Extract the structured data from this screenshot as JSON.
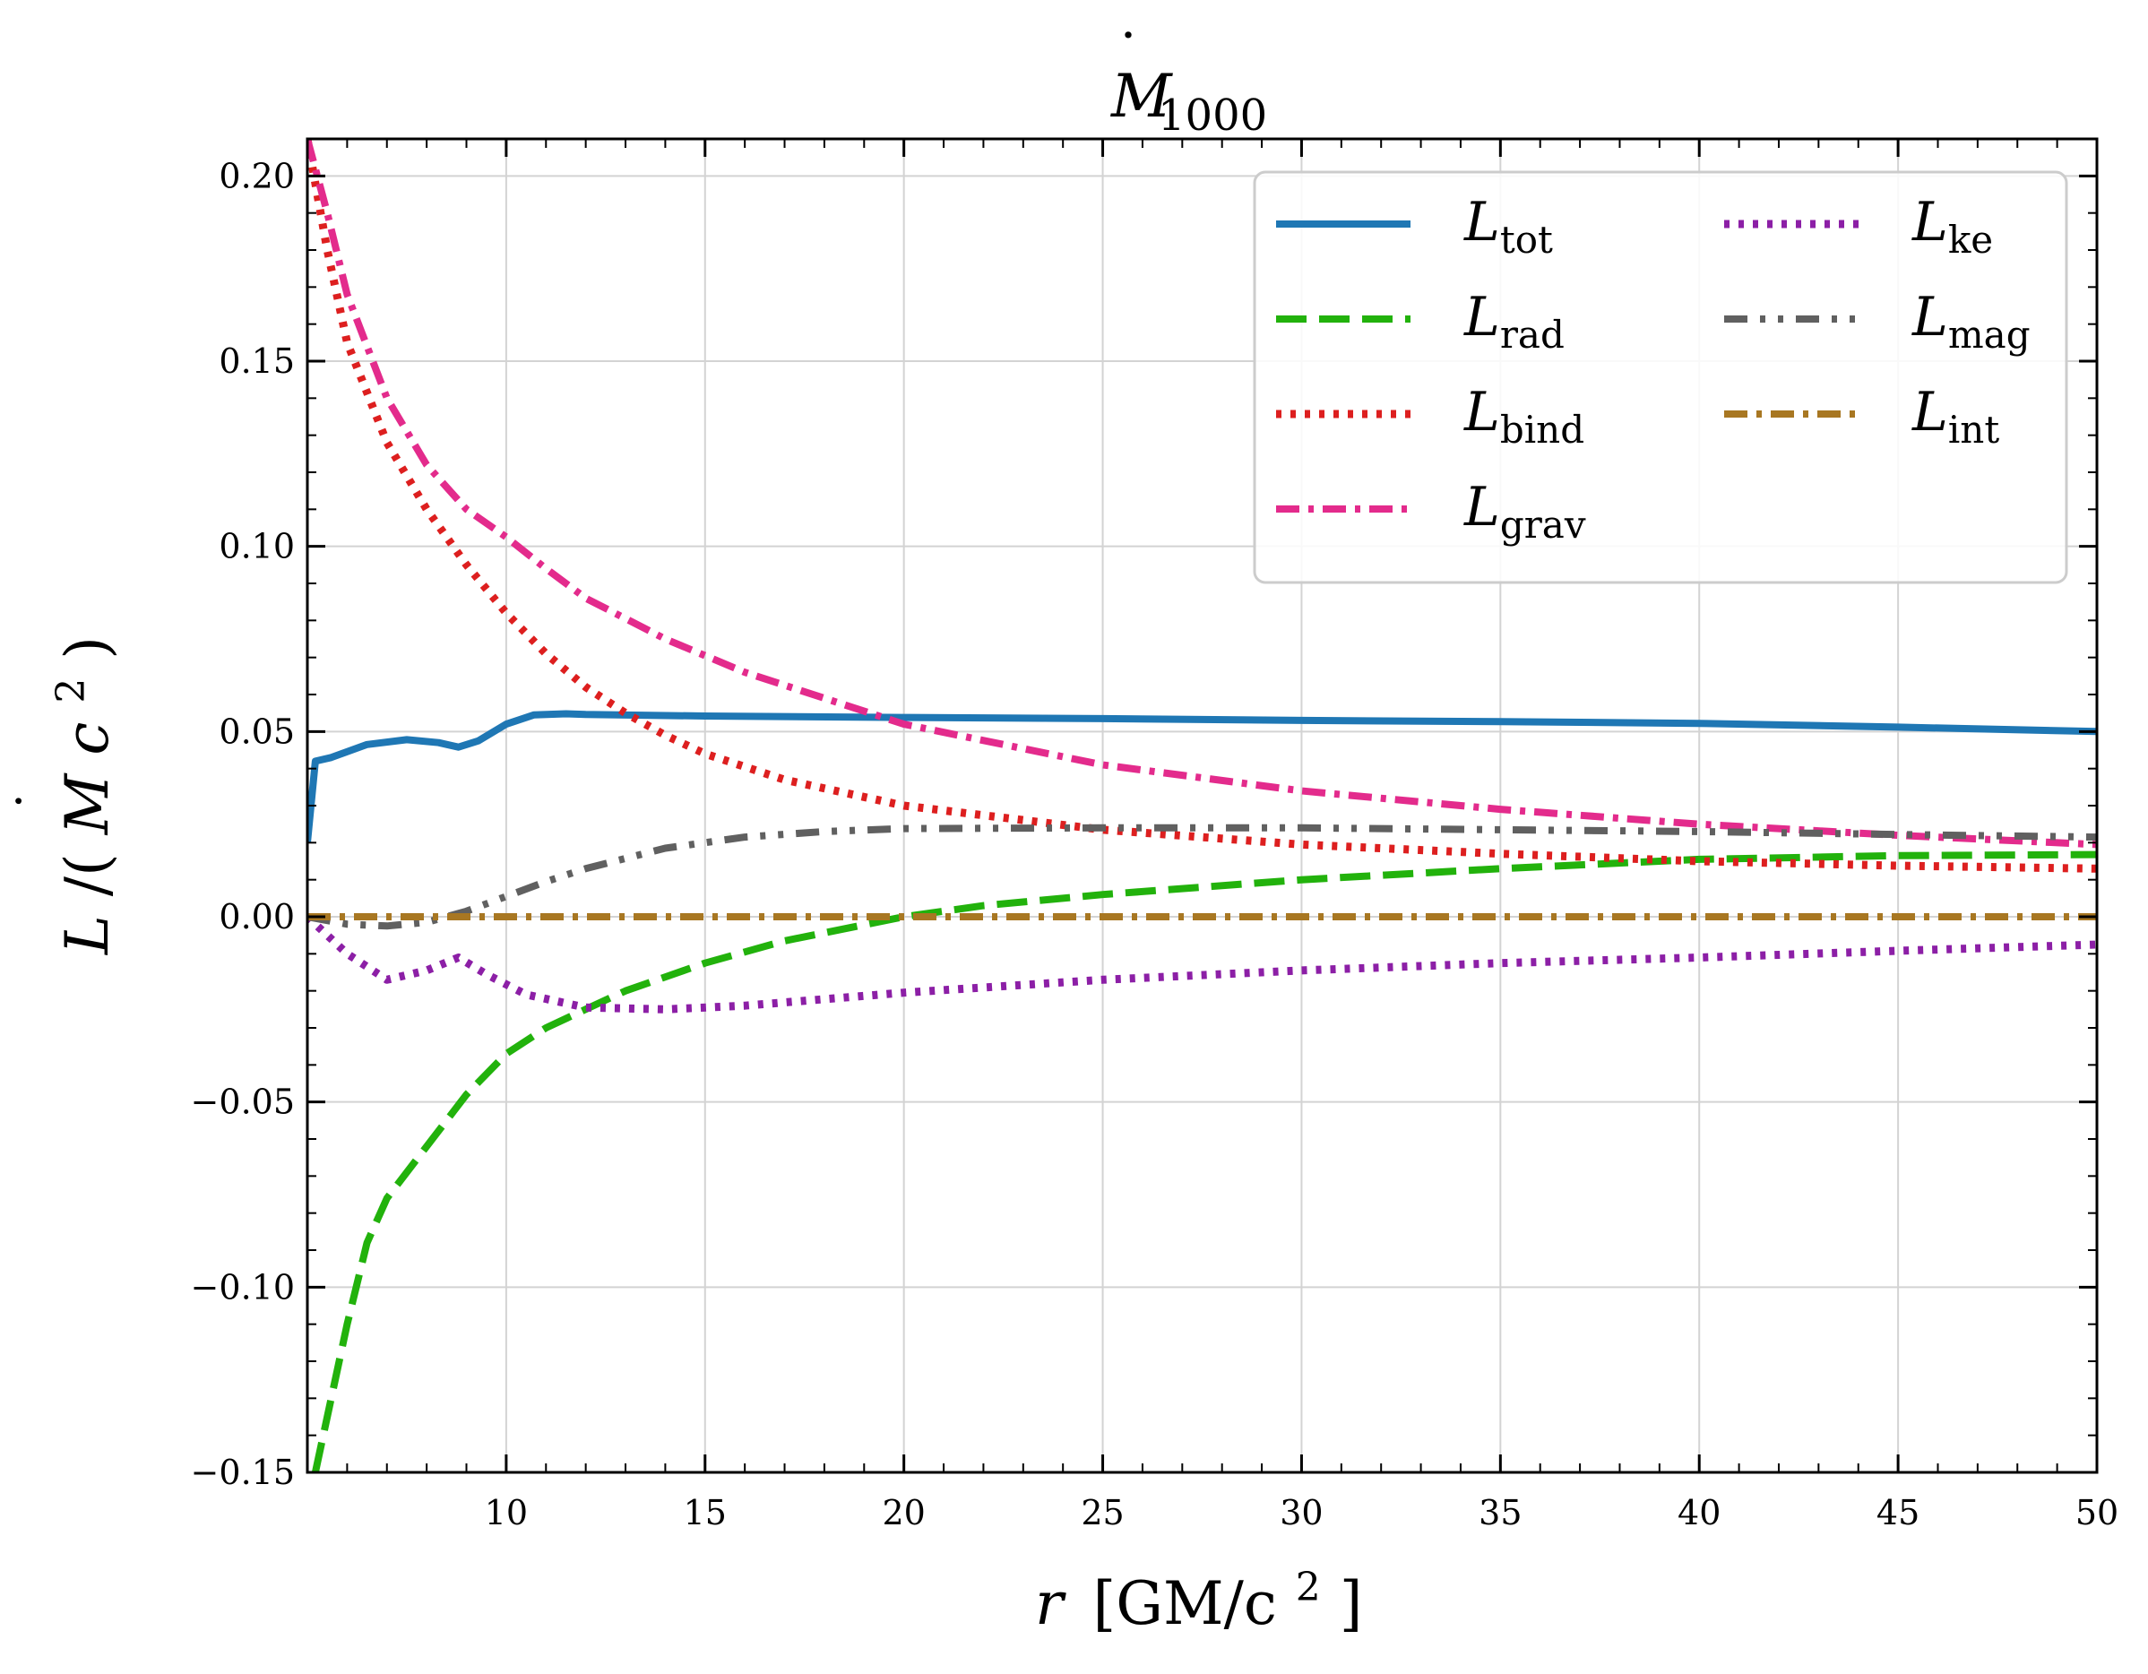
{
  "chart_data": {
    "type": "line",
    "title": {
      "base": "M",
      "dot": "˙",
      "subscript": "1000"
    },
    "xlabel": {
      "var": "r",
      "units": "[GM/c",
      "sup": "2",
      "close": "]"
    },
    "ylabel": {
      "var": "L",
      "slash": "/(",
      "mdot": "M",
      "c": "c",
      "sup": "2",
      "close": ")"
    },
    "xlim": [
      5,
      50
    ],
    "ylim": [
      -0.15,
      0.21
    ],
    "xticks": [
      10,
      15,
      20,
      25,
      30,
      35,
      40,
      45,
      50
    ],
    "xtick_labels": [
      "10",
      "15",
      "20",
      "25",
      "30",
      "35",
      "40",
      "45",
      "50"
    ],
    "yticks": [
      -0.15,
      -0.1,
      -0.05,
      0.0,
      0.05,
      0.1,
      0.15,
      0.2
    ],
    "ytick_labels": [
      "−0.15",
      "−0.10",
      "−0.05",
      "0.00",
      "0.05",
      "0.10",
      "0.15",
      "0.20"
    ],
    "grid": true,
    "legend": {
      "placement": "top-right",
      "columns": 2
    },
    "series": [
      {
        "key": "tot",
        "name": "L",
        "sub": "tot",
        "color": "#1f77b4",
        "style": "solid",
        "x": [
          5,
          5.2,
          5.6,
          6.5,
          7.5,
          8.3,
          8.8,
          9.3,
          10,
          10.7,
          11.5,
          12,
          15,
          20,
          25,
          30,
          35,
          40,
          45,
          50
        ],
        "y": [
          0.02,
          0.042,
          0.043,
          0.0465,
          0.0478,
          0.047,
          0.0458,
          0.0475,
          0.052,
          0.0545,
          0.0548,
          0.0546,
          0.0542,
          0.0538,
          0.0535,
          0.053,
          0.0527,
          0.0522,
          0.0512,
          0.05
        ]
      },
      {
        "key": "rad",
        "name": "L",
        "sub": "rad",
        "color": "#22b20c",
        "style": "dashed",
        "x": [
          5.2,
          5.5,
          6,
          6.5,
          7,
          8,
          9,
          10,
          11,
          12,
          13,
          15,
          17,
          20,
          22,
          25,
          30,
          35,
          40,
          45,
          50
        ],
        "y": [
          -0.15,
          -0.135,
          -0.11,
          -0.088,
          -0.076,
          -0.062,
          -0.048,
          -0.037,
          -0.03,
          -0.025,
          -0.02,
          -0.0125,
          -0.0065,
          0.0,
          0.003,
          0.006,
          0.01,
          0.013,
          0.0155,
          0.0165,
          0.0168
        ]
      },
      {
        "key": "bind",
        "name": "L",
        "sub": "bind",
        "color": "#dd1f1f",
        "style": "dotted",
        "x": [
          5,
          5.5,
          6,
          7,
          8,
          9,
          10,
          11,
          12,
          13,
          14,
          15,
          17,
          20,
          25,
          30,
          35,
          40,
          45,
          50
        ],
        "y": [
          0.21,
          0.18,
          0.155,
          0.128,
          0.11,
          0.095,
          0.082,
          0.071,
          0.062,
          0.055,
          0.049,
          0.044,
          0.037,
          0.03,
          0.0235,
          0.0195,
          0.017,
          0.015,
          0.0138,
          0.013
        ]
      },
      {
        "key": "grav",
        "name": "L",
        "sub": "grav",
        "color": "#e32b8c",
        "style": "dashdot",
        "x": [
          5,
          5.5,
          6,
          7,
          8,
          9,
          10,
          11,
          12,
          14,
          16,
          20,
          25,
          30,
          35,
          40,
          45,
          50
        ],
        "y": [
          0.21,
          0.19,
          0.168,
          0.14,
          0.122,
          0.11,
          0.1025,
          0.094,
          0.086,
          0.075,
          0.066,
          0.052,
          0.041,
          0.034,
          0.029,
          0.025,
          0.022,
          0.0195
        ]
      },
      {
        "key": "ke",
        "name": "L",
        "sub": "ke",
        "color": "#8c1fa6",
        "style": "dotted",
        "x": [
          5,
          6,
          7,
          8,
          8.8,
          9.5,
          10.5,
          12,
          14,
          16,
          20,
          25,
          30,
          35,
          40,
          45,
          50
        ],
        "y": [
          0.0,
          -0.01,
          -0.017,
          -0.0145,
          -0.011,
          -0.0155,
          -0.021,
          -0.0245,
          -0.025,
          -0.024,
          -0.0205,
          -0.017,
          -0.0145,
          -0.0125,
          -0.011,
          -0.0092,
          -0.0075
        ]
      },
      {
        "key": "mag",
        "name": "L",
        "sub": "mag",
        "color": "#606060",
        "style": "dashdotdot",
        "x": [
          5,
          6,
          7,
          8,
          9,
          10,
          11,
          12,
          14,
          16,
          18,
          20,
          25,
          30,
          35,
          40,
          45,
          50
        ],
        "y": [
          0.0,
          -0.002,
          -0.0025,
          -0.0015,
          0.0015,
          0.0055,
          0.0095,
          0.013,
          0.0185,
          0.0215,
          0.023,
          0.0238,
          0.024,
          0.024,
          0.0235,
          0.023,
          0.0222,
          0.0215
        ]
      },
      {
        "key": "int",
        "name": "L",
        "sub": "int",
        "color": "#a87722",
        "style": "dashdot",
        "x": [
          5,
          50
        ],
        "y": [
          0.0,
          0.0
        ]
      }
    ]
  }
}
